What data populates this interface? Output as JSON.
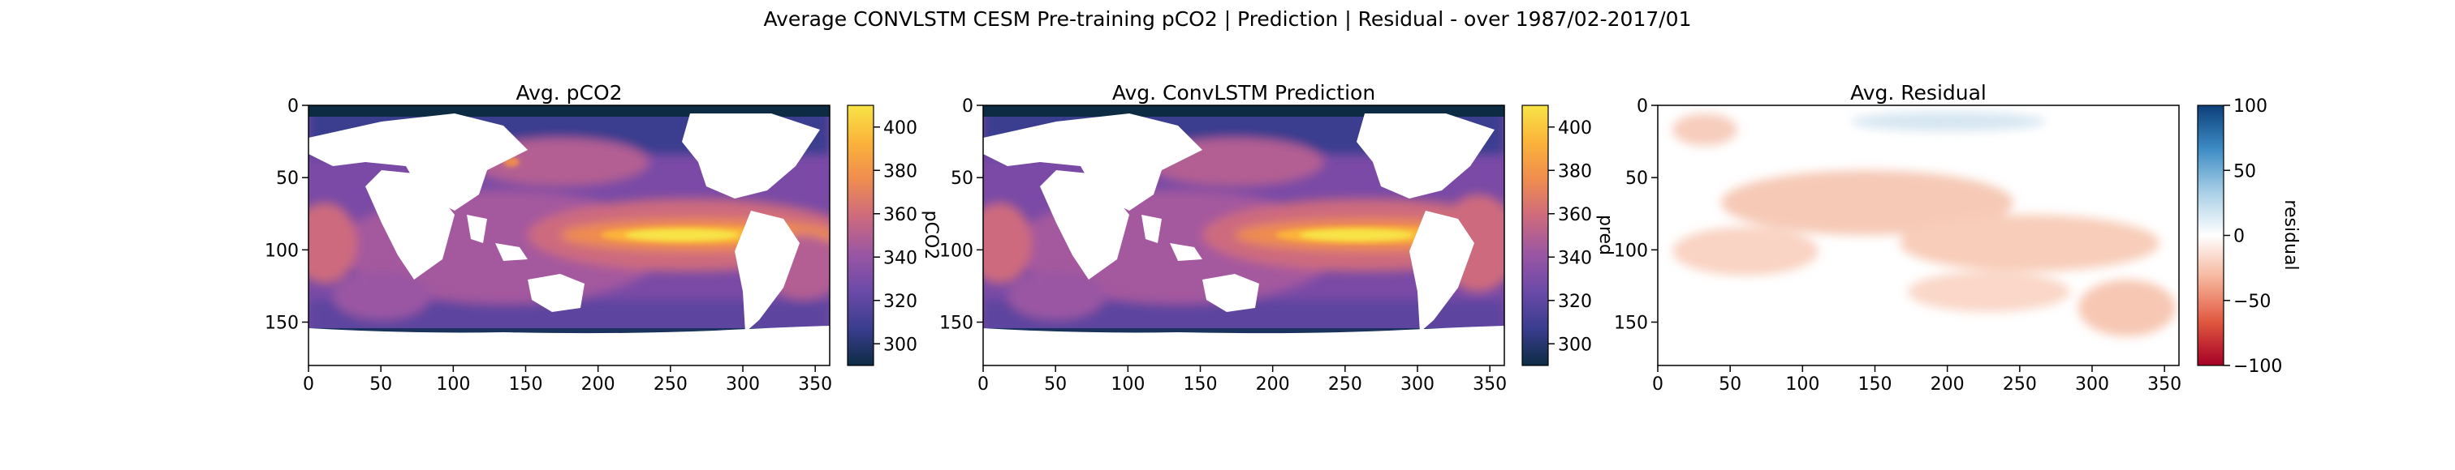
{
  "figure": {
    "suptitle": "Average CONVLSTM CESM Pre-training pCO2 | Prediction | Residual - over 1987/02-2017/01"
  },
  "colors": {
    "land": "#ffffff",
    "thermal": [
      "#0d2c44",
      "#3a3d8f",
      "#6b4aa8",
      "#9a56a3",
      "#cd6a7e",
      "#ef8c50",
      "#fbb33a",
      "#f7e447"
    ],
    "balance": [
      "#a50026",
      "#e0573f",
      "#f6b49a",
      "#ffffff",
      "#a8cfe6",
      "#3d8bc4",
      "#0d3f7a"
    ]
  },
  "chart_data": [
    {
      "type": "heatmap",
      "title": "Avg. pCO2",
      "xlabel": "",
      "ylabel": "",
      "xlim": [
        0,
        360
      ],
      "ylim": [
        180,
        0
      ],
      "xticks": [
        "0",
        "50",
        "100",
        "150",
        "200",
        "250",
        "300",
        "350"
      ],
      "yticks": [
        "0",
        "50",
        "100",
        "150"
      ],
      "colorbar": {
        "label": "pCO2",
        "range": [
          290,
          410
        ],
        "ticks": [
          "300",
          "320",
          "340",
          "360",
          "380",
          "400"
        ],
        "cmap": "thermal"
      },
      "field": "pco2_mean"
    },
    {
      "type": "heatmap",
      "title": "Avg. ConvLSTM Prediction",
      "xlabel": "",
      "ylabel": "",
      "xlim": [
        0,
        360
      ],
      "ylim": [
        180,
        0
      ],
      "xticks": [
        "0",
        "50",
        "100",
        "150",
        "200",
        "250",
        "300",
        "350"
      ],
      "yticks": [
        "0",
        "50",
        "100",
        "150"
      ],
      "colorbar": {
        "label": "pred",
        "range": [
          290,
          410
        ],
        "ticks": [
          "300",
          "320",
          "340",
          "360",
          "380",
          "400"
        ],
        "cmap": "thermal"
      },
      "field": "prediction_mean"
    },
    {
      "type": "heatmap",
      "title": "Avg. Residual",
      "xlabel": "",
      "ylabel": "",
      "xlim": [
        0,
        360
      ],
      "ylim": [
        180,
        0
      ],
      "xticks": [
        "0",
        "50",
        "100",
        "150",
        "200",
        "250",
        "300",
        "350"
      ],
      "yticks": [
        "0",
        "50",
        "100",
        "150"
      ],
      "colorbar": {
        "label": "residual",
        "range": [
          -100,
          100
        ],
        "ticks": [
          "100",
          "50",
          "0",
          "−50",
          "−100"
        ],
        "cmap": "balance"
      },
      "field": "residual_mean"
    }
  ]
}
